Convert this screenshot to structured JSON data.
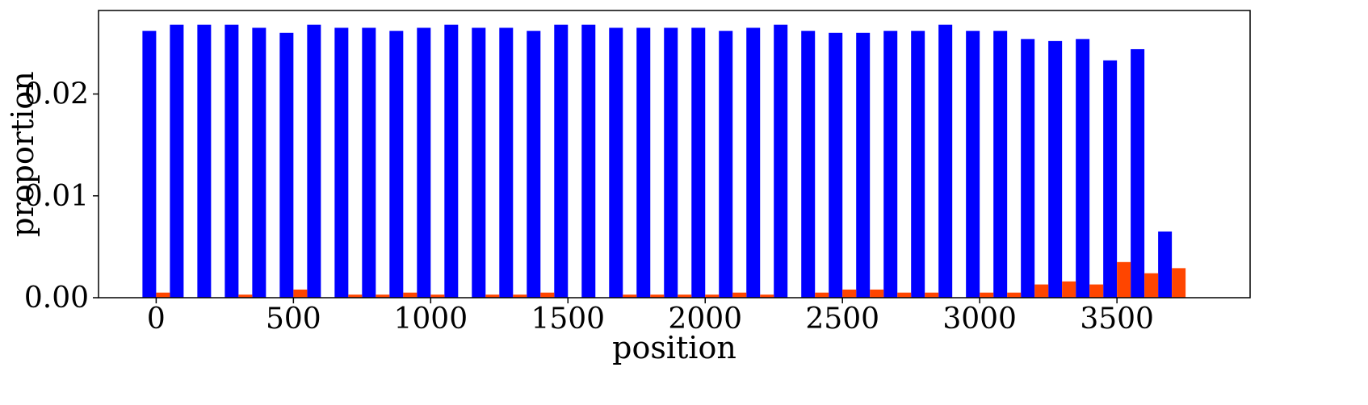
{
  "chart_data": {
    "type": "bar",
    "title": "",
    "xlabel": "position",
    "ylabel": "proportion",
    "xlim": [
      -210,
      3985
    ],
    "ylim": [
      0,
      0.0282
    ],
    "xticks": [
      0,
      500,
      1000,
      1500,
      2000,
      2500,
      3000,
      3500
    ],
    "xtick_labels": [
      "0",
      "500",
      "1000",
      "1500",
      "2000",
      "2500",
      "3000",
      "3500"
    ],
    "yticks": [
      0.0,
      0.01,
      0.02
    ],
    "ytick_labels": [
      "0.00",
      "0.01",
      "0.02"
    ],
    "grid": false,
    "legend": "none",
    "bin_width": 100,
    "bar_width": 50,
    "bin_starts": [
      0,
      100,
      200,
      300,
      400,
      500,
      600,
      700,
      800,
      900,
      1000,
      1100,
      1200,
      1300,
      1400,
      1500,
      1600,
      1700,
      1800,
      1900,
      2000,
      2100,
      2200,
      2300,
      2400,
      2500,
      2600,
      2700,
      2800,
      2900,
      3000,
      3100,
      3200,
      3300,
      3400,
      3500,
      3600,
      3700
    ],
    "series": [
      {
        "color": "#0000ff",
        "values": [
          0.0262,
          0.0268,
          0.0268,
          0.0268,
          0.0265,
          0.026,
          0.0268,
          0.0265,
          0.0265,
          0.0262,
          0.0265,
          0.0268,
          0.0265,
          0.0265,
          0.0262,
          0.0268,
          0.0268,
          0.0265,
          0.0265,
          0.0265,
          0.0265,
          0.0262,
          0.0265,
          0.0268,
          0.0262,
          0.026,
          0.026,
          0.0262,
          0.0262,
          0.0268,
          0.0262,
          0.0262,
          0.0254,
          0.0252,
          0.0254,
          0.0233,
          0.0244,
          0.0065
        ]
      },
      {
        "color": "#ff4500",
        "values": [
          0.0005,
          0.0,
          0.0,
          0.0003,
          0.0,
          0.0008,
          0.0,
          0.0003,
          0.0003,
          0.0005,
          0.0003,
          0.0,
          0.0003,
          0.0003,
          0.0005,
          0.0,
          0.0,
          0.0003,
          0.0003,
          0.0003,
          0.0003,
          0.0005,
          0.0003,
          0.0,
          0.0005,
          0.0008,
          0.0008,
          0.0005,
          0.0005,
          0.0,
          0.0005,
          0.0005,
          0.0013,
          0.0016,
          0.0013,
          0.0035,
          0.0024,
          0.0029
        ]
      }
    ]
  }
}
